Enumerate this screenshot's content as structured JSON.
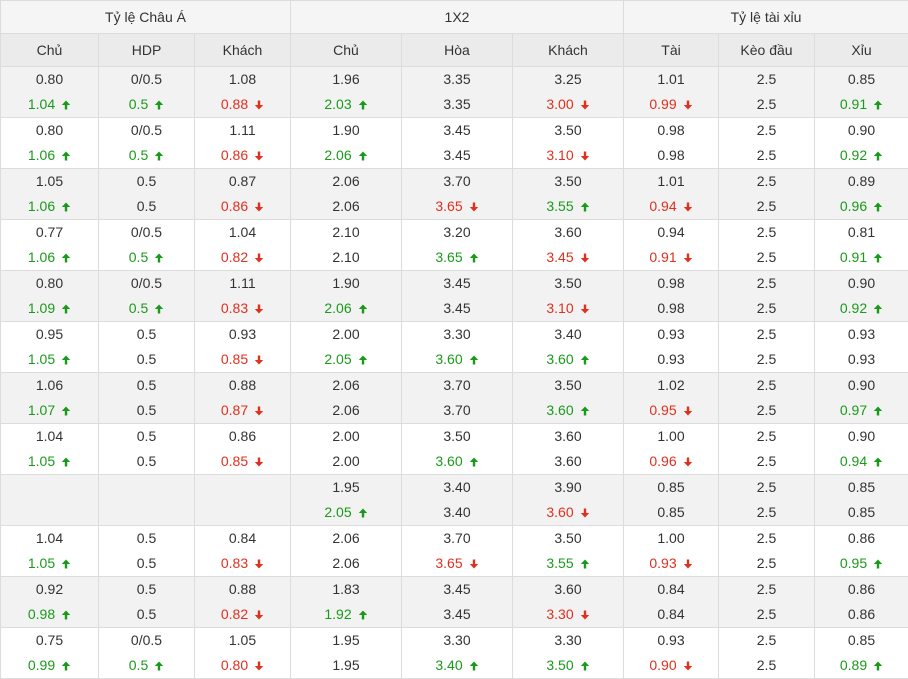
{
  "header": {
    "groups": [
      "Tỷ lệ Châu Á",
      "1X2",
      "Tỷ lệ tài xỉu"
    ],
    "columns": [
      "Chủ",
      "HDP",
      "Khách",
      "Chủ",
      "Hòa",
      "Khách",
      "Tài",
      "Kèo đầu",
      "Xỉu"
    ]
  },
  "colors": {
    "up": "#1a9a1a",
    "down": "#e0301e"
  },
  "rows": [
    [
      [
        {
          "v": "0.80"
        },
        {
          "v": "1.04",
          "t": "up"
        }
      ],
      [
        {
          "v": "0/0.5"
        },
        {
          "v": "0.5",
          "t": "up"
        }
      ],
      [
        {
          "v": "1.08"
        },
        {
          "v": "0.88",
          "t": "down"
        }
      ],
      [
        {
          "v": "1.96"
        },
        {
          "v": "2.03",
          "t": "up"
        }
      ],
      [
        {
          "v": "3.35"
        },
        {
          "v": "3.35"
        }
      ],
      [
        {
          "v": "3.25"
        },
        {
          "v": "3.00",
          "t": "down"
        }
      ],
      [
        {
          "v": "1.01"
        },
        {
          "v": "0.99",
          "t": "down"
        }
      ],
      [
        {
          "v": "2.5"
        },
        {
          "v": "2.5"
        }
      ],
      [
        {
          "v": "0.85"
        },
        {
          "v": "0.91",
          "t": "up"
        }
      ]
    ],
    [
      [
        {
          "v": "0.80"
        },
        {
          "v": "1.06",
          "t": "up"
        }
      ],
      [
        {
          "v": "0/0.5"
        },
        {
          "v": "0.5",
          "t": "up"
        }
      ],
      [
        {
          "v": "1.11"
        },
        {
          "v": "0.86",
          "t": "down"
        }
      ],
      [
        {
          "v": "1.90"
        },
        {
          "v": "2.06",
          "t": "up"
        }
      ],
      [
        {
          "v": "3.45"
        },
        {
          "v": "3.45"
        }
      ],
      [
        {
          "v": "3.50"
        },
        {
          "v": "3.10",
          "t": "down"
        }
      ],
      [
        {
          "v": "0.98"
        },
        {
          "v": "0.98"
        }
      ],
      [
        {
          "v": "2.5"
        },
        {
          "v": "2.5"
        }
      ],
      [
        {
          "v": "0.90"
        },
        {
          "v": "0.92",
          "t": "up"
        }
      ]
    ],
    [
      [
        {
          "v": "1.05"
        },
        {
          "v": "1.06",
          "t": "up"
        }
      ],
      [
        {
          "v": "0.5"
        },
        {
          "v": "0.5"
        }
      ],
      [
        {
          "v": "0.87"
        },
        {
          "v": "0.86",
          "t": "down"
        }
      ],
      [
        {
          "v": "2.06"
        },
        {
          "v": "2.06"
        }
      ],
      [
        {
          "v": "3.70"
        },
        {
          "v": "3.65",
          "t": "down"
        }
      ],
      [
        {
          "v": "3.50"
        },
        {
          "v": "3.55",
          "t": "up"
        }
      ],
      [
        {
          "v": "1.01"
        },
        {
          "v": "0.94",
          "t": "down"
        }
      ],
      [
        {
          "v": "2.5"
        },
        {
          "v": "2.5"
        }
      ],
      [
        {
          "v": "0.89"
        },
        {
          "v": "0.96",
          "t": "up"
        }
      ]
    ],
    [
      [
        {
          "v": "0.77"
        },
        {
          "v": "1.06",
          "t": "up"
        }
      ],
      [
        {
          "v": "0/0.5"
        },
        {
          "v": "0.5",
          "t": "up"
        }
      ],
      [
        {
          "v": "1.04"
        },
        {
          "v": "0.82",
          "t": "down"
        }
      ],
      [
        {
          "v": "2.10"
        },
        {
          "v": "2.10"
        }
      ],
      [
        {
          "v": "3.20"
        },
        {
          "v": "3.65",
          "t": "up"
        }
      ],
      [
        {
          "v": "3.60"
        },
        {
          "v": "3.45",
          "t": "down"
        }
      ],
      [
        {
          "v": "0.94"
        },
        {
          "v": "0.91",
          "t": "down"
        }
      ],
      [
        {
          "v": "2.5"
        },
        {
          "v": "2.5"
        }
      ],
      [
        {
          "v": "0.81"
        },
        {
          "v": "0.91",
          "t": "up"
        }
      ]
    ],
    [
      [
        {
          "v": "0.80"
        },
        {
          "v": "1.09",
          "t": "up"
        }
      ],
      [
        {
          "v": "0/0.5"
        },
        {
          "v": "0.5",
          "t": "up"
        }
      ],
      [
        {
          "v": "1.11"
        },
        {
          "v": "0.83",
          "t": "down"
        }
      ],
      [
        {
          "v": "1.90"
        },
        {
          "v": "2.06",
          "t": "up"
        }
      ],
      [
        {
          "v": "3.45"
        },
        {
          "v": "3.45"
        }
      ],
      [
        {
          "v": "3.50"
        },
        {
          "v": "3.10",
          "t": "down"
        }
      ],
      [
        {
          "v": "0.98"
        },
        {
          "v": "0.98"
        }
      ],
      [
        {
          "v": "2.5"
        },
        {
          "v": "2.5"
        }
      ],
      [
        {
          "v": "0.90"
        },
        {
          "v": "0.92",
          "t": "up"
        }
      ]
    ],
    [
      [
        {
          "v": "0.95"
        },
        {
          "v": "1.05",
          "t": "up"
        }
      ],
      [
        {
          "v": "0.5"
        },
        {
          "v": "0.5"
        }
      ],
      [
        {
          "v": "0.93"
        },
        {
          "v": "0.85",
          "t": "down"
        }
      ],
      [
        {
          "v": "2.00"
        },
        {
          "v": "2.05",
          "t": "up"
        }
      ],
      [
        {
          "v": "3.30"
        },
        {
          "v": "3.60",
          "t": "up"
        }
      ],
      [
        {
          "v": "3.40"
        },
        {
          "v": "3.60",
          "t": "up"
        }
      ],
      [
        {
          "v": "0.93"
        },
        {
          "v": "0.93"
        }
      ],
      [
        {
          "v": "2.5"
        },
        {
          "v": "2.5"
        }
      ],
      [
        {
          "v": "0.93"
        },
        {
          "v": "0.93"
        }
      ]
    ],
    [
      [
        {
          "v": "1.06"
        },
        {
          "v": "1.07",
          "t": "up"
        }
      ],
      [
        {
          "v": "0.5"
        },
        {
          "v": "0.5"
        }
      ],
      [
        {
          "v": "0.88"
        },
        {
          "v": "0.87",
          "t": "down"
        }
      ],
      [
        {
          "v": "2.06"
        },
        {
          "v": "2.06"
        }
      ],
      [
        {
          "v": "3.70"
        },
        {
          "v": "3.70"
        }
      ],
      [
        {
          "v": "3.50"
        },
        {
          "v": "3.60",
          "t": "up"
        }
      ],
      [
        {
          "v": "1.02"
        },
        {
          "v": "0.95",
          "t": "down"
        }
      ],
      [
        {
          "v": "2.5"
        },
        {
          "v": "2.5"
        }
      ],
      [
        {
          "v": "0.90"
        },
        {
          "v": "0.97",
          "t": "up"
        }
      ]
    ],
    [
      [
        {
          "v": "1.04"
        },
        {
          "v": "1.05",
          "t": "up"
        }
      ],
      [
        {
          "v": "0.5"
        },
        {
          "v": "0.5"
        }
      ],
      [
        {
          "v": "0.86"
        },
        {
          "v": "0.85",
          "t": "down"
        }
      ],
      [
        {
          "v": "2.00"
        },
        {
          "v": "2.00"
        }
      ],
      [
        {
          "v": "3.50"
        },
        {
          "v": "3.60",
          "t": "up"
        }
      ],
      [
        {
          "v": "3.60"
        },
        {
          "v": "3.60"
        }
      ],
      [
        {
          "v": "1.00"
        },
        {
          "v": "0.96",
          "t": "down"
        }
      ],
      [
        {
          "v": "2.5"
        },
        {
          "v": "2.5"
        }
      ],
      [
        {
          "v": "0.90"
        },
        {
          "v": "0.94",
          "t": "up"
        }
      ]
    ],
    [
      [],
      [],
      [],
      [
        {
          "v": "1.95"
        },
        {
          "v": "2.05",
          "t": "up"
        }
      ],
      [
        {
          "v": "3.40"
        },
        {
          "v": "3.40"
        }
      ],
      [
        {
          "v": "3.90"
        },
        {
          "v": "3.60",
          "t": "down"
        }
      ],
      [
        {
          "v": "0.85"
        },
        {
          "v": "0.85"
        }
      ],
      [
        {
          "v": "2.5"
        },
        {
          "v": "2.5"
        }
      ],
      [
        {
          "v": "0.85"
        },
        {
          "v": "0.85"
        }
      ]
    ],
    [
      [
        {
          "v": "1.04"
        },
        {
          "v": "1.05",
          "t": "up"
        }
      ],
      [
        {
          "v": "0.5"
        },
        {
          "v": "0.5"
        }
      ],
      [
        {
          "v": "0.84"
        },
        {
          "v": "0.83",
          "t": "down"
        }
      ],
      [
        {
          "v": "2.06"
        },
        {
          "v": "2.06"
        }
      ],
      [
        {
          "v": "3.70"
        },
        {
          "v": "3.65",
          "t": "down"
        }
      ],
      [
        {
          "v": "3.50"
        },
        {
          "v": "3.55",
          "t": "up"
        }
      ],
      [
        {
          "v": "1.00"
        },
        {
          "v": "0.93",
          "t": "down"
        }
      ],
      [
        {
          "v": "2.5"
        },
        {
          "v": "2.5"
        }
      ],
      [
        {
          "v": "0.86"
        },
        {
          "v": "0.95",
          "t": "up"
        }
      ]
    ],
    [
      [
        {
          "v": "0.92"
        },
        {
          "v": "0.98",
          "t": "up"
        }
      ],
      [
        {
          "v": "0.5"
        },
        {
          "v": "0.5"
        }
      ],
      [
        {
          "v": "0.88"
        },
        {
          "v": "0.82",
          "t": "down"
        }
      ],
      [
        {
          "v": "1.83"
        },
        {
          "v": "1.92",
          "t": "up"
        }
      ],
      [
        {
          "v": "3.45"
        },
        {
          "v": "3.45"
        }
      ],
      [
        {
          "v": "3.60"
        },
        {
          "v": "3.30",
          "t": "down"
        }
      ],
      [
        {
          "v": "0.84"
        },
        {
          "v": "0.84"
        }
      ],
      [
        {
          "v": "2.5"
        },
        {
          "v": "2.5"
        }
      ],
      [
        {
          "v": "0.86"
        },
        {
          "v": "0.86"
        }
      ]
    ],
    [
      [
        {
          "v": "0.75"
        },
        {
          "v": "0.99",
          "t": "up"
        }
      ],
      [
        {
          "v": "0/0.5"
        },
        {
          "v": "0.5",
          "t": "up"
        }
      ],
      [
        {
          "v": "1.05"
        },
        {
          "v": "0.80",
          "t": "down"
        }
      ],
      [
        {
          "v": "1.95"
        },
        {
          "v": "1.95"
        }
      ],
      [
        {
          "v": "3.30"
        },
        {
          "v": "3.40",
          "t": "up"
        }
      ],
      [
        {
          "v": "3.30"
        },
        {
          "v": "3.50",
          "t": "up"
        }
      ],
      [
        {
          "v": "0.93"
        },
        {
          "v": "0.90",
          "t": "down"
        }
      ],
      [
        {
          "v": "2.5"
        },
        {
          "v": "2.5"
        }
      ],
      [
        {
          "v": "0.85"
        },
        {
          "v": "0.89",
          "t": "up"
        }
      ]
    ]
  ]
}
